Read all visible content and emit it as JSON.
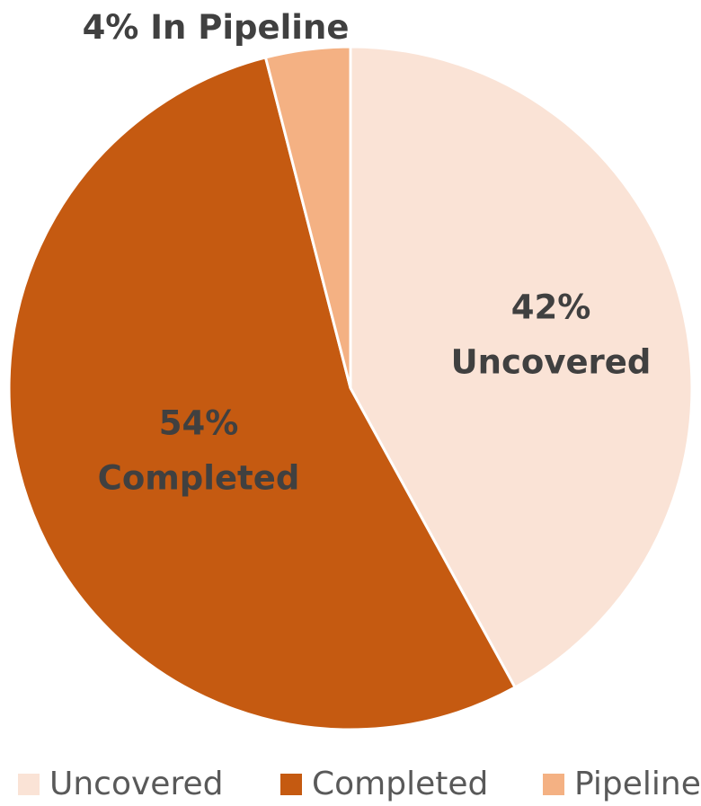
{
  "chart_data": {
    "type": "pie",
    "categories": [
      "Uncovered",
      "Completed",
      "Pipeline"
    ],
    "values": [
      42,
      54,
      4
    ],
    "value_labels": [
      "42%\nUncovered",
      "54%\nCompleted",
      "4% In Pipeline"
    ],
    "colors": [
      "#fae3d6",
      "#c55a11",
      "#f4b183"
    ],
    "legend": "bottom"
  }
}
